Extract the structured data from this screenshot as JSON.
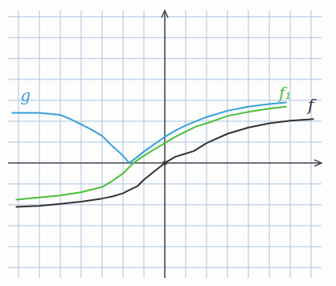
{
  "chart_data": {
    "type": "line",
    "xlim": [
      -7.5,
      7.5
    ],
    "ylim": [
      -5.5,
      7.3
    ],
    "xticks": [
      -7,
      -6,
      -5,
      -4,
      -3,
      -2,
      -1,
      0,
      1,
      2,
      3,
      4,
      5,
      6,
      7
    ],
    "yticks": [
      -5,
      -4,
      -3,
      -2,
      -1,
      0,
      1,
      2,
      3,
      4,
      5,
      6,
      7
    ],
    "grid": true,
    "tick_labels": false,
    "series": [
      {
        "name": "g",
        "color": "#35a0d8",
        "x": [
          -7.3,
          -6,
          -5,
          -4.5,
          -4,
          -3.5,
          -3,
          -2.5,
          -2,
          -1.7,
          -1.3,
          -1,
          -0.5,
          0,
          0.5,
          1,
          1.5,
          2,
          3,
          4,
          5,
          5.8
        ],
        "values": [
          2.4,
          2.4,
          2.3,
          2.1,
          1.85,
          1.6,
          1.3,
          0.8,
          0.35,
          0,
          0.3,
          0.55,
          0.9,
          1.25,
          1.55,
          1.8,
          2.0,
          2.2,
          2.5,
          2.7,
          2.82,
          2.9
        ]
      },
      {
        "name": "f₁",
        "color": "#4cbf3a",
        "x": [
          -7.1,
          -6,
          -5,
          -4,
          -3,
          -2.5,
          -2,
          -1.5,
          -1,
          -0.5,
          0,
          0.5,
          1,
          1.5,
          2,
          3,
          4,
          5,
          5.8
        ],
        "values": [
          -1.75,
          -1.65,
          -1.55,
          -1.4,
          -1.15,
          -0.85,
          -0.5,
          0,
          0.35,
          0.65,
          0.95,
          1.25,
          1.5,
          1.75,
          1.9,
          2.25,
          2.45,
          2.6,
          2.7
        ]
      },
      {
        "name": "f",
        "color": "#333333",
        "x": [
          -7.1,
          -6,
          -5,
          -4,
          -3,
          -2.5,
          -2,
          -1.7,
          -1.3,
          -1,
          -0.5,
          0,
          0.5,
          1,
          1.4,
          2,
          3,
          4,
          5,
          6,
          7.1
        ],
        "values": [
          -2.1,
          -2.05,
          -1.95,
          -1.85,
          -1.7,
          -1.6,
          -1.45,
          -1.3,
          -1.1,
          -0.8,
          -0.4,
          0,
          0.3,
          0.45,
          0.58,
          0.95,
          1.4,
          1.7,
          1.9,
          2.02,
          2.1
        ]
      }
    ]
  }
}
